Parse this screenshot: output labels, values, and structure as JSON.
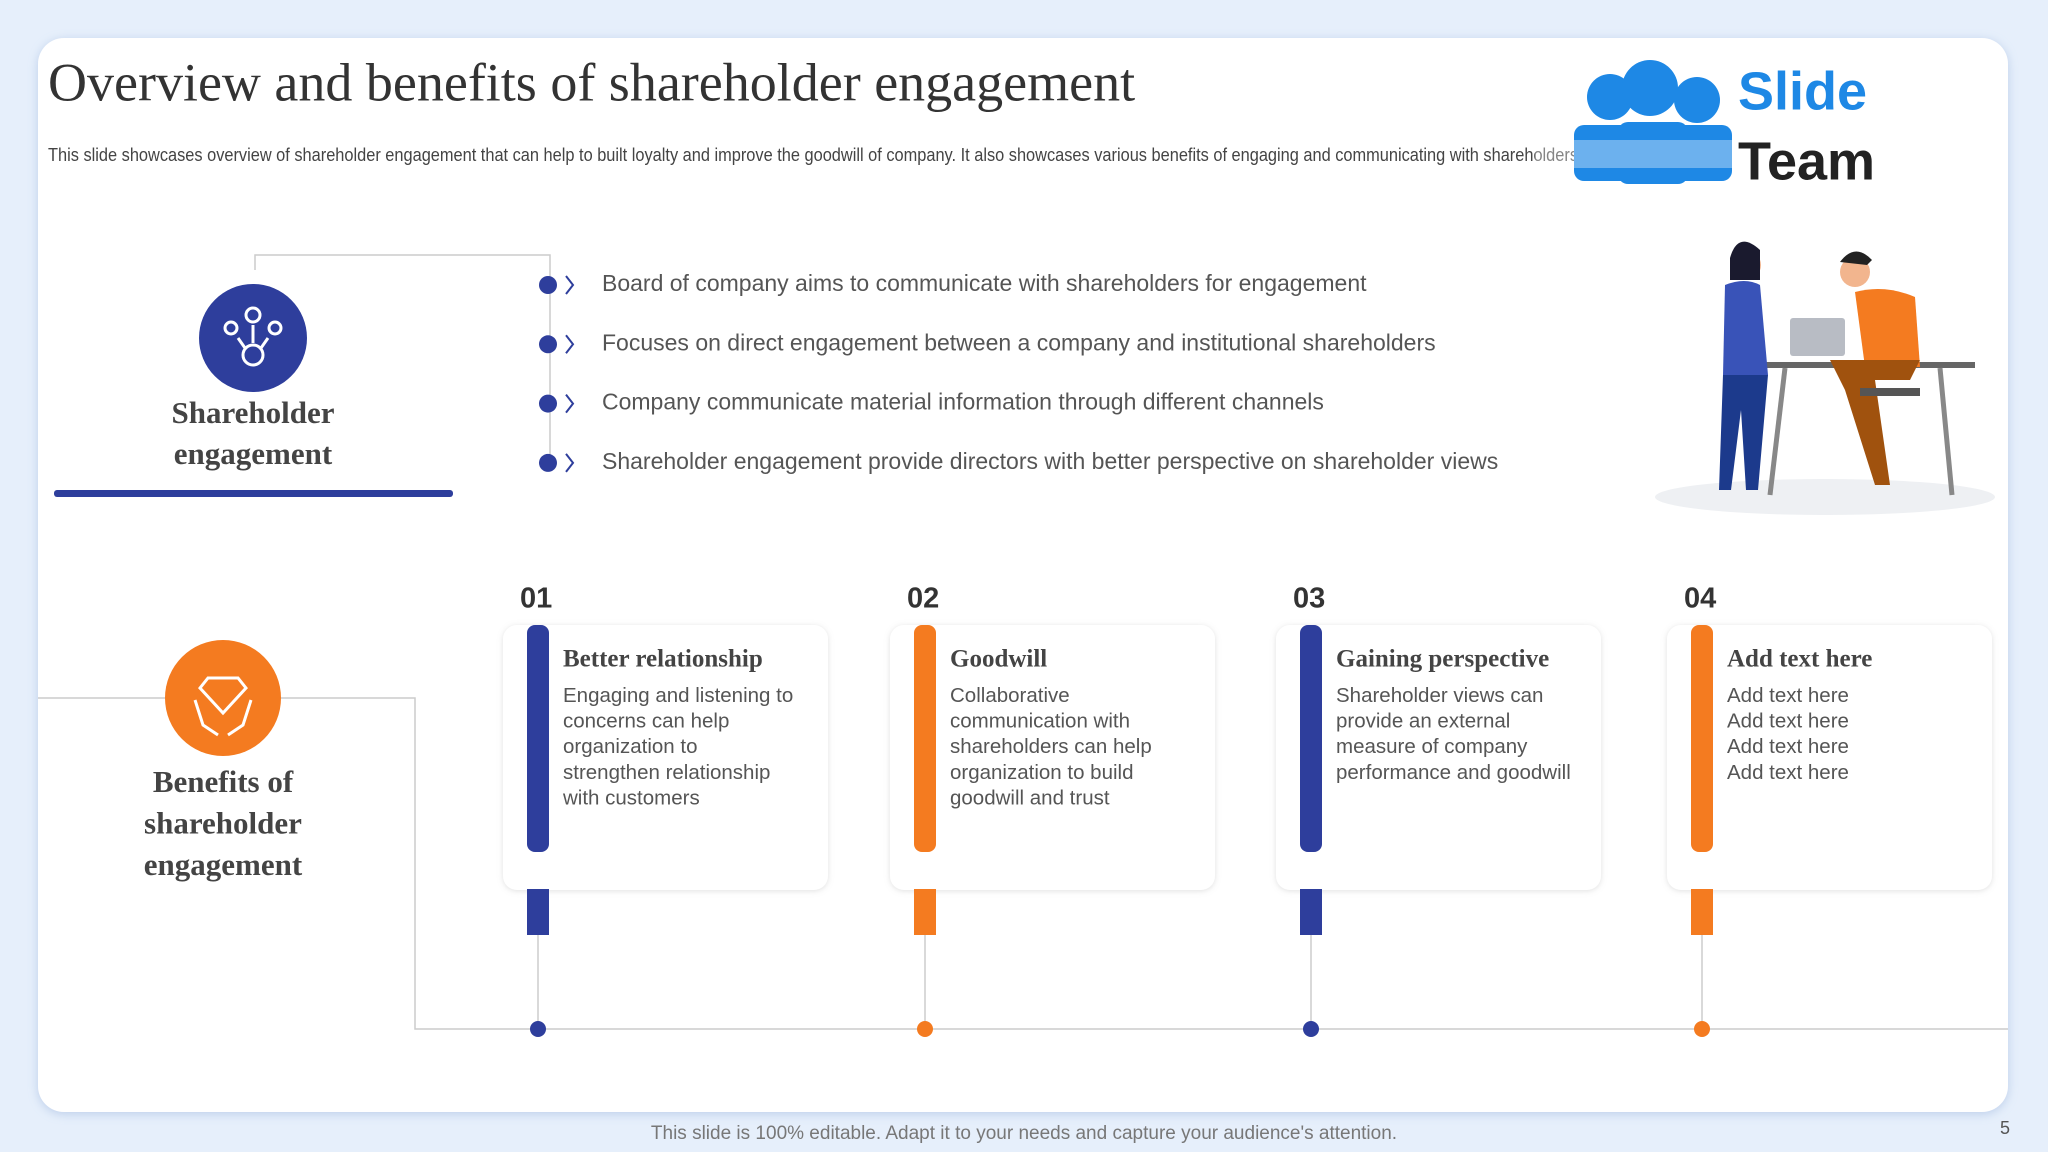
{
  "header": {
    "title": "Overview and benefits of  shareholder engagement",
    "subtitle": "This slide showcases overview of shareholder engagement that can help to  built loyalty and improve the goodwill of company. It also showcases various benefits of engaging and communicating with shareholders"
  },
  "logo": {
    "line1": "Slide",
    "line2": "Team"
  },
  "overview": {
    "label_lines": [
      "Shareholder",
      "engagement"
    ],
    "bullets": [
      "Board of company aims to communicate with shareholders for engagement",
      "Focuses on direct engagement between a company and institutional shareholders",
      "Company communicate material information through different channels",
      "Shareholder engagement provide  directors with better perspective on shareholder views"
    ]
  },
  "benefits": {
    "label_lines": [
      "Benefits  of",
      "shareholder",
      "engagement"
    ],
    "cards": [
      {
        "number": "01",
        "heading": "Better relationship",
        "lines": [
          "Engaging and listening to",
          "concerns can help",
          "organization  to",
          "strengthen relationship",
          "with customers"
        ]
      },
      {
        "number": "02",
        "heading": "Goodwill",
        "lines": [
          "Collaborative",
          "communication  with",
          "shareholders  can help",
          "organization  to build",
          "goodwill  and trust"
        ]
      },
      {
        "number": "03",
        "heading": "Gaining perspective",
        "lines": [
          "Shareholder  views  can",
          "provide  an external",
          "measure  of company",
          "performance  and goodwill"
        ]
      },
      {
        "number": "04",
        "heading": "Add text here",
        "lines": [
          "Add text here",
          "Add text here",
          "Add text here",
          "Add text here"
        ]
      }
    ]
  },
  "footer": {
    "note": "This slide is 100% editable. Adapt it to your needs and capture your audience's attention.",
    "page": "5"
  }
}
